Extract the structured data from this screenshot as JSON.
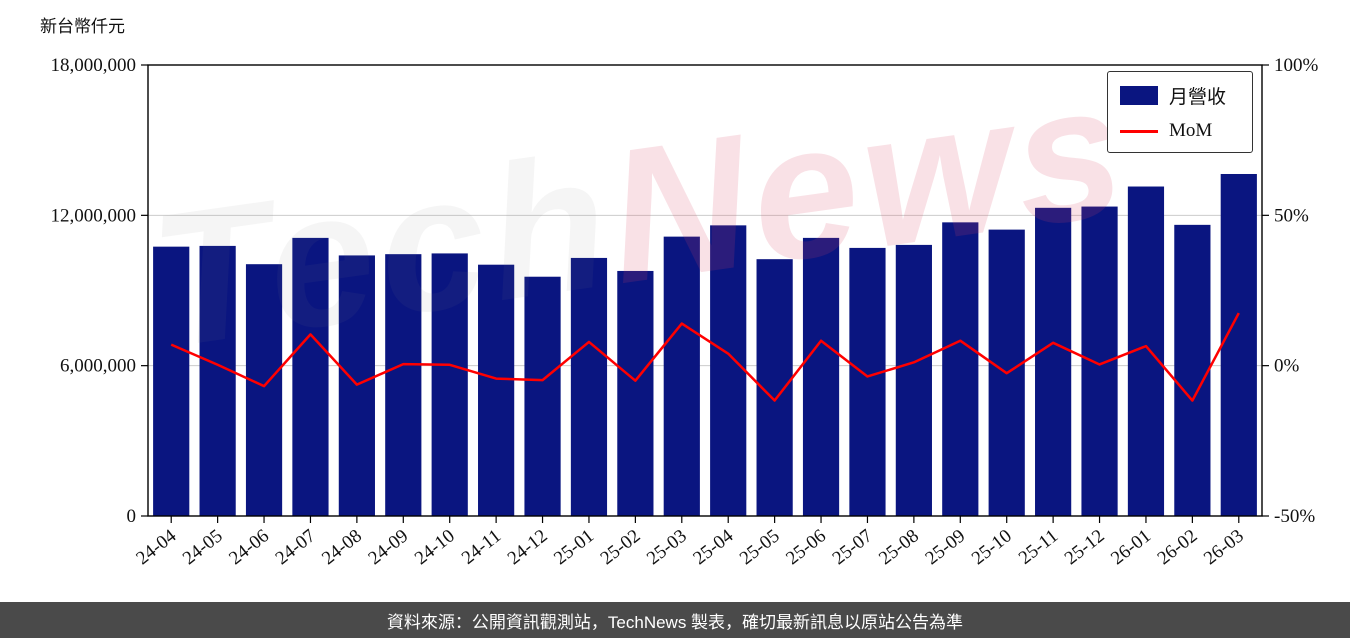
{
  "header": {
    "unit_label": "新台幣仟元"
  },
  "legend": {
    "bar_label": "月營收",
    "line_label": "MoM"
  },
  "watermark": {
    "part1": "Tech",
    "part2": "News"
  },
  "footer": {
    "text": "資料來源：公開資訊觀測站，TechNews 製表，確切最新訊息以原站公告為準"
  },
  "colors": {
    "bar": "#0a1580",
    "line": "#ff0000",
    "grid": "#cccccc",
    "axis": "#000000",
    "footer_bg": "#4a4a4a",
    "watermark_gray": "rgba(130,130,130,0.08)",
    "watermark_pink": "rgba(220,70,100,0.16)"
  },
  "chart_data": {
    "type": "bar",
    "title": "",
    "categories": [
      "24-04",
      "24-05",
      "24-06",
      "24-07",
      "24-08",
      "24-09",
      "24-10",
      "24-11",
      "24-12",
      "25-01",
      "25-02",
      "25-03",
      "25-04",
      "25-05",
      "25-06",
      "25-07",
      "25-08",
      "25-09",
      "25-10",
      "25-11",
      "25-12",
      "26-01",
      "26-02",
      "26-03"
    ],
    "series": [
      {
        "name": "月營收",
        "type": "bar",
        "axis": "left",
        "color": "#0a1580",
        "values": [
          10750000,
          10780000,
          10050000,
          11100000,
          10400000,
          10450000,
          10480000,
          10030000,
          9550000,
          10300000,
          9780000,
          11150000,
          11600000,
          10250000,
          11100000,
          10700000,
          10820000,
          11720000,
          11430000,
          12300000,
          12350000,
          13150000,
          11620000,
          13650000
        ]
      },
      {
        "name": "MoM",
        "type": "line",
        "axis": "right",
        "color": "#ff0000",
        "values": [
          7.0,
          0.3,
          -6.8,
          10.4,
          -6.3,
          0.5,
          0.3,
          -4.3,
          -4.8,
          7.9,
          -5.0,
          14.0,
          4.0,
          -11.6,
          8.3,
          -3.6,
          1.1,
          8.3,
          -2.5,
          7.6,
          0.4,
          6.5,
          -11.6,
          17.5
        ]
      }
    ],
    "left_axis": {
      "label": "新台幣仟元",
      "range": [
        0,
        18000000
      ],
      "ticks": [
        0,
        6000000,
        12000000,
        18000000
      ],
      "tick_labels": [
        "0",
        "6,000,000",
        "12,000,000",
        "18,000,000"
      ]
    },
    "right_axis": {
      "range": [
        -50,
        100
      ],
      "ticks": [
        -50,
        0,
        50,
        100
      ],
      "tick_labels": [
        "-50%",
        "0%",
        "50%",
        "100%"
      ]
    },
    "grid": "horizontal",
    "legend_position": "upper right"
  }
}
